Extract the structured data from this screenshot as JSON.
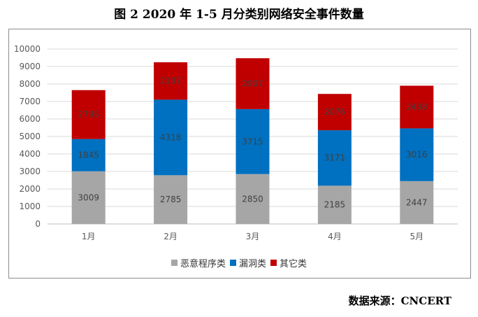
{
  "title": "图 2 2020 年 1-5 月分类别网络安全事件数量",
  "source": "数据来源：CNCERT",
  "chart_data": {
    "type": "bar",
    "stacked": true,
    "categories": [
      "1月",
      "2月",
      "3月",
      "4月",
      "5月"
    ],
    "series": [
      {
        "name": "恶意程序类",
        "color": "#a6a6a6",
        "values": [
          3009,
          2785,
          2850,
          2185,
          2447
        ]
      },
      {
        "name": "漏洞类",
        "color": "#0070c0",
        "values": [
          1845,
          4318,
          3715,
          3171,
          3016
        ]
      },
      {
        "name": "其它类",
        "color": "#c00000",
        "values": [
          2795,
          2137,
          2907,
          2076,
          2438
        ]
      }
    ],
    "yticks": [
      "0",
      "1000",
      "2000",
      "3000",
      "4000",
      "5000",
      "6000",
      "7000",
      "8000",
      "9000",
      "10000"
    ],
    "ylim": [
      0,
      10000
    ],
    "grid": true,
    "legend_position": "bottom"
  }
}
